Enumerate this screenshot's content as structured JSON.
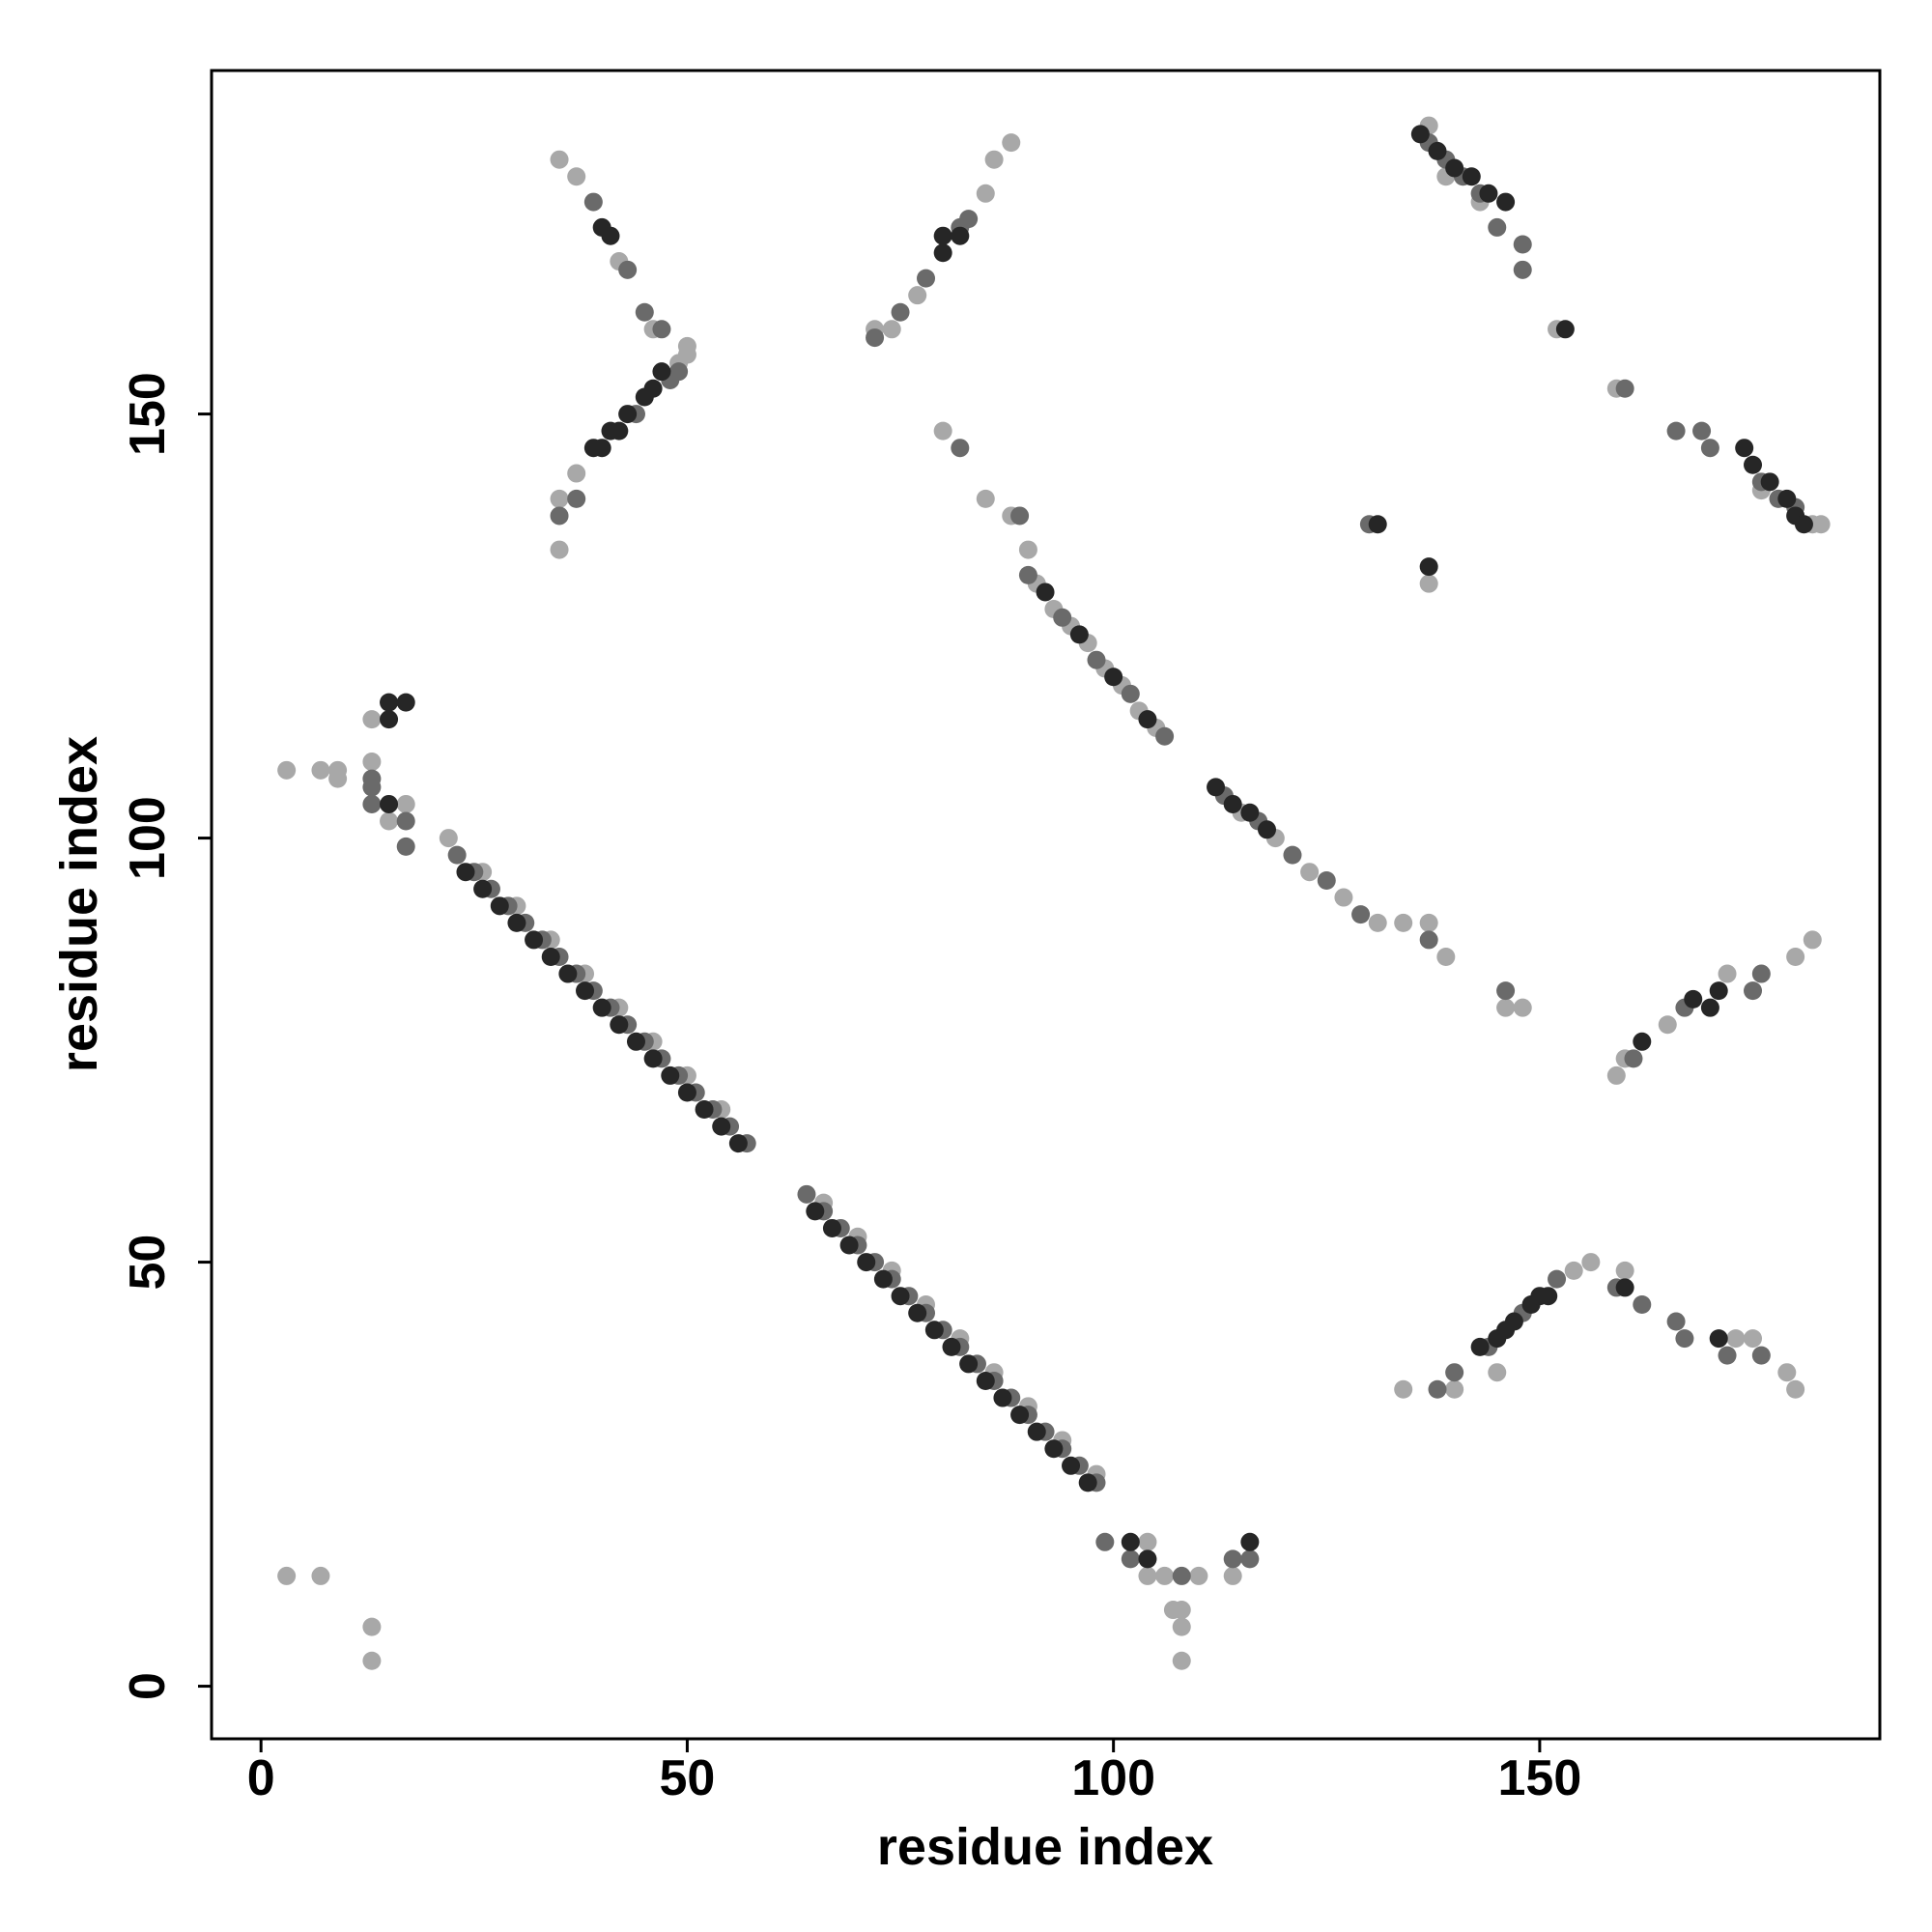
{
  "chart_data": {
    "type": "scatter",
    "x_label": "residue index",
    "y_label": "residue index",
    "xlim": [
      -5.8,
      189.9
    ],
    "ylim": [
      -6.2,
      190.5
    ],
    "xticks": [
      0,
      50,
      100,
      150
    ],
    "yticks": [
      0,
      50,
      100,
      150
    ],
    "series": [
      {
        "color": "#a8a8a8",
        "x": [
          22,
          26,
          30,
          34,
          38,
          42,
          46,
          50,
          54,
          66,
          70,
          74,
          78,
          82,
          86,
          90,
          94,
          98,
          91,
          93,
          95,
          97,
          99,
          101,
          103,
          105,
          80,
          85,
          88,
          90,
          115,
          119,
          123,
          127,
          131,
          134,
          137,
          139,
          148,
          146,
          35,
          37,
          42,
          46,
          50,
          35,
          35,
          37,
          49,
          50,
          72,
          74,
          77,
          85,
          86,
          88,
          137,
          139,
          143,
          152,
          159,
          176,
          182,
          183,
          137,
          159,
          160,
          165,
          172,
          180,
          182,
          134,
          140,
          145,
          154,
          156,
          160,
          173,
          175,
          179,
          180,
          3,
          7,
          9,
          9,
          13,
          13,
          15,
          17,
          3,
          7,
          13,
          13,
          104,
          104,
          106,
          107,
          108,
          108,
          110,
          114,
          108
        ],
        "values": [
          100,
          96,
          92,
          88,
          84,
          80,
          76,
          72,
          68,
          57,
          53,
          49,
          45,
          41,
          37,
          33,
          29,
          25,
          130,
          127,
          125,
          123,
          120,
          118,
          115,
          113,
          148,
          140,
          138,
          134,
          103,
          100,
          96,
          93,
          90,
          90,
          90,
          86,
          80,
          80,
          180,
          178,
          168,
          160,
          157,
          134,
          140,
          143,
          156,
          158,
          160,
          160,
          164,
          176,
          180,
          182,
          184,
          178,
          175,
          160,
          153,
          141,
          137,
          137,
          130,
          72,
          74,
          78,
          84,
          86,
          88,
          35,
          35,
          37,
          49,
          50,
          49,
          41,
          41,
          37,
          35,
          108,
          108,
          108,
          107,
          114,
          109,
          102,
          104,
          13,
          13,
          7,
          3,
          17,
          13,
          13,
          9,
          9,
          7,
          13,
          13,
          3
        ]
      },
      {
        "color": "#6a6a6a",
        "x": [
          23,
          25,
          27,
          29,
          31,
          33,
          35,
          37,
          39,
          41,
          43,
          45,
          47,
          49,
          51,
          53,
          55,
          57,
          64,
          66,
          68,
          70,
          72,
          74,
          76,
          78,
          80,
          82,
          84,
          86,
          88,
          90,
          92,
          94,
          96,
          98,
          90,
          94,
          98,
          102,
          106,
          82,
          89,
          113,
          117,
          121,
          125,
          129,
          137,
          146,
          39,
          43,
          45,
          47,
          35,
          37,
          44,
          48,
          49,
          72,
          75,
          78,
          82,
          83,
          137,
          139,
          141,
          143,
          145,
          148,
          148,
          160,
          166,
          169,
          170,
          176,
          178,
          180,
          130,
          161,
          167,
          176,
          175,
          138,
          140,
          144,
          148,
          152,
          159,
          162,
          166,
          167,
          172,
          176,
          13,
          13,
          17,
          13,
          17,
          99,
          102,
          108,
          114,
          116
        ],
        "values": [
          98,
          96,
          94,
          92,
          90,
          88,
          86,
          84,
          82,
          80,
          78,
          76,
          74,
          72,
          70,
          68,
          66,
          64,
          58,
          56,
          54,
          52,
          50,
          48,
          46,
          44,
          42,
          40,
          38,
          36,
          34,
          32,
          30,
          28,
          26,
          24,
          131,
          126,
          121,
          117,
          112,
          146,
          138,
          105,
          102,
          98,
          95,
          91,
          88,
          82,
          175,
          167,
          162,
          160,
          138,
          140,
          150,
          154,
          155,
          159,
          162,
          166,
          172,
          173,
          182,
          180,
          178,
          176,
          172,
          170,
          167,
          153,
          148,
          148,
          146,
          142,
          140,
          139,
          137,
          74,
          80,
          84,
          82,
          35,
          37,
          40,
          44,
          48,
          47,
          45,
          43,
          41,
          39,
          39,
          107,
          106,
          99,
          104,
          102,
          17,
          15,
          13,
          15,
          15
        ]
      },
      {
        "color": "#262626",
        "x": [
          24,
          26,
          28,
          30,
          32,
          34,
          36,
          38,
          40,
          42,
          44,
          46,
          48,
          50,
          52,
          54,
          56,
          65,
          67,
          69,
          71,
          73,
          75,
          77,
          79,
          81,
          83,
          85,
          87,
          89,
          91,
          93,
          95,
          97,
          92,
          96,
          100,
          104,
          112,
          114,
          116,
          118,
          41,
          40,
          39,
          40,
          41,
          42,
          43,
          45,
          46,
          47,
          80,
          80,
          82,
          136,
          138,
          140,
          142,
          144,
          146,
          153,
          174,
          175,
          177,
          179,
          180,
          181,
          131,
          137,
          162,
          168,
          171,
          170,
          143,
          145,
          146,
          147,
          149,
          150,
          151,
          160,
          171,
          15,
          17,
          15,
          15,
          102,
          104,
          116
        ],
        "values": [
          96,
          94,
          92,
          90,
          88,
          86,
          84,
          82,
          80,
          78,
          76,
          74,
          72,
          70,
          68,
          66,
          64,
          56,
          54,
          52,
          50,
          48,
          46,
          44,
          42,
          40,
          38,
          36,
          34,
          32,
          30,
          28,
          26,
          24,
          129,
          124,
          119,
          114,
          106,
          104,
          103,
          101,
          171,
          172,
          146,
          146,
          148,
          148,
          150,
          152,
          153,
          155,
          169,
          171,
          171,
          183,
          181,
          179,
          178,
          176,
          175,
          160,
          146,
          144,
          142,
          140,
          138,
          137,
          137,
          132,
          76,
          81,
          82,
          80,
          40,
          41,
          42,
          43,
          45,
          46,
          46,
          47,
          41,
          116,
          116,
          114,
          104,
          17,
          15,
          17
        ]
      }
    ]
  }
}
